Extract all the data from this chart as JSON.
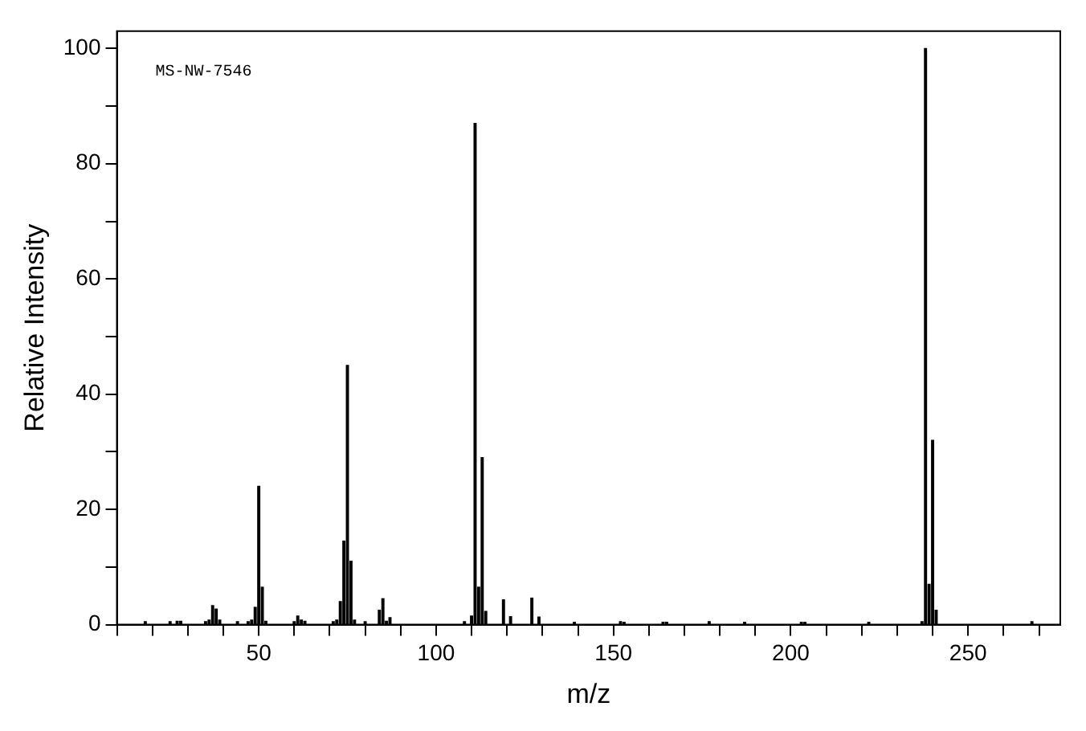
{
  "chart_data": {
    "type": "bar",
    "xlabel": "m/z",
    "ylabel": "Relative Intensity",
    "annotations": [
      "MS-NW-7546"
    ],
    "x": [
      18,
      25,
      27,
      28,
      35,
      36,
      37,
      38,
      39,
      44,
      47,
      48,
      49,
      50,
      51,
      52,
      60,
      61,
      62,
      63,
      71,
      72,
      73,
      74,
      75,
      76,
      77,
      80,
      84,
      85,
      86,
      87,
      108,
      110,
      111,
      112,
      113,
      114,
      119,
      121,
      127,
      129,
      139,
      152,
      153,
      164,
      165,
      177,
      187,
      203,
      204,
      222,
      237,
      238,
      239,
      240,
      241,
      268
    ],
    "values": [
      0.5,
      0.5,
      0.6,
      0.6,
      0.5,
      0.8,
      3.3,
      2.7,
      0.8,
      0.5,
      0.5,
      0.8,
      3,
      24,
      6.5,
      0.6,
      0.5,
      1.5,
      0.8,
      0.6,
      0.5,
      0.8,
      4,
      14.5,
      45,
      11,
      0.8,
      0.5,
      2.5,
      4.5,
      0.6,
      1.2,
      0.5,
      1.5,
      87,
      6.5,
      29,
      2.3,
      4.3,
      1.4,
      4.6,
      1.3,
      0.4,
      0.5,
      0.4,
      0.4,
      0.4,
      0.5,
      0.4,
      0.4,
      0.4,
      0.4,
      0.5,
      100,
      7,
      32,
      2.5,
      0.5
    ],
    "color": "#000000",
    "xlim": [
      10,
      276
    ],
    "xticks": [
      {
        "value": 10,
        "label": null
      },
      {
        "value": 20,
        "label": null
      },
      {
        "value": 30,
        "label": null
      },
      {
        "value": 40,
        "label": null
      },
      50,
      {
        "value": 60,
        "label": null
      },
      {
        "value": 70,
        "label": null
      },
      {
        "value": 80,
        "label": null
      },
      {
        "value": 90,
        "label": null
      },
      100,
      {
        "value": 110,
        "label": null
      },
      {
        "value": 120,
        "label": null
      },
      {
        "value": 130,
        "label": null
      },
      {
        "value": 140,
        "label": null
      },
      150,
      {
        "value": 160,
        "label": null
      },
      {
        "value": 170,
        "label": null
      },
      {
        "value": 180,
        "label": null
      },
      {
        "value": 190,
        "label": null
      },
      200,
      {
        "value": 210,
        "label": null
      },
      {
        "value": 220,
        "label": null
      },
      {
        "value": 230,
        "label": null
      },
      {
        "value": 240,
        "label": null
      },
      250,
      {
        "value": 260,
        "label": null
      },
      {
        "value": 270,
        "label": null
      }
    ],
    "ylim": [
      0,
      103
    ],
    "yticks": [
      0,
      {
        "value": 10,
        "label": null
      },
      20,
      {
        "value": 30,
        "label": null
      },
      40,
      {
        "value": 50,
        "label": null
      },
      60,
      {
        "value": 70,
        "label": null
      },
      80,
      {
        "value": 90,
        "label": null
      },
      100
    ],
    "grid": false,
    "legend": false
  }
}
